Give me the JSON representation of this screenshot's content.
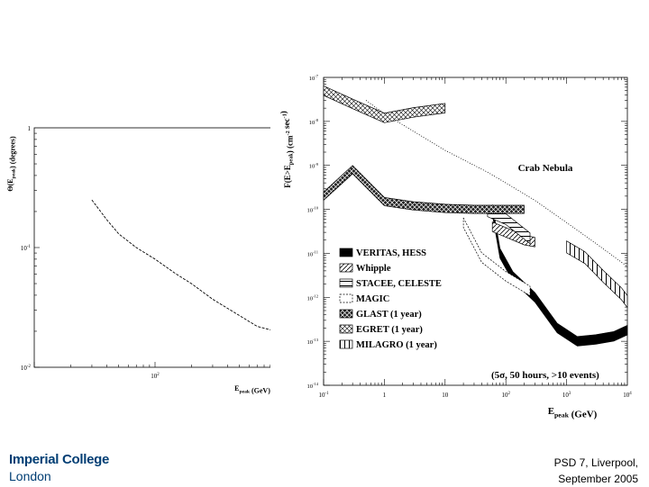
{
  "footer": {
    "line1": "PSD 7, Liverpool,",
    "line2": "September 2005"
  },
  "logo": {
    "line1": "Imperial College",
    "line2": "London",
    "color": "#003e74"
  },
  "chart_data": [
    {
      "id": "angular-resolution",
      "type": "line",
      "title": "",
      "ylabel": "Θ(E_peak) (degrees)",
      "xlabel": "E_peak (GeV)",
      "xscale": "log",
      "yscale": "log",
      "xlim": [
        10,
        1000
      ],
      "ylim": [
        0.01,
        1
      ],
      "xticks": [
        {
          "value": 100,
          "label": "10^2"
        },
        {
          "value": 1000,
          "label": "10^3"
        }
      ],
      "yticks": [
        {
          "value": 0.01,
          "label": "10^-2"
        },
        {
          "value": 0.1,
          "label": "10^-1"
        },
        {
          "value": 1,
          "label": "1"
        }
      ],
      "series": [
        {
          "style": "dashed",
          "x": [
            30,
            40,
            50,
            70,
            100,
            150,
            200,
            300,
            500,
            700,
            1000
          ],
          "y": [
            0.25,
            0.17,
            0.13,
            0.1,
            0.08,
            0.06,
            0.05,
            0.037,
            0.027,
            0.022,
            0.02
          ]
        }
      ]
    },
    {
      "id": "sensitivity",
      "type": "line",
      "title": "",
      "ylabel": "F(E>E_peak) (cm^-2 sec^-1)",
      "xlabel": "E_peak (GeV)",
      "xscale": "log",
      "yscale": "log",
      "xlim": [
        0.1,
        10000
      ],
      "ylim": [
        1e-14,
        1e-07
      ],
      "xticks": [
        {
          "value": 0.1,
          "label": "10^-1"
        },
        {
          "value": 1,
          "label": "1"
        },
        {
          "value": 10,
          "label": "10"
        },
        {
          "value": 100,
          "label": "10^2"
        },
        {
          "value": 1000,
          "label": "10^3"
        },
        {
          "value": 10000,
          "label": "10^4"
        }
      ],
      "yticks": [
        {
          "value": 1e-07,
          "label": "10^-7"
        },
        {
          "value": 1e-08,
          "label": "10^-8"
        },
        {
          "value": 1e-09,
          "label": "10^-9"
        },
        {
          "value": 1e-10,
          "label": "10^-10"
        },
        {
          "value": 1e-11,
          "label": "10^-11"
        },
        {
          "value": 1e-12,
          "label": "10^-12"
        },
        {
          "value": 1e-13,
          "label": "10^-13"
        },
        {
          "value": 1e-14,
          "label": "10^-14"
        }
      ],
      "annotations": [
        {
          "text": "Crab Nebula",
          "x": 300,
          "y": 1.2e-09
        },
        {
          "text": "(5σ, 50 hours, >10 events)",
          "x": 30,
          "y": 2e-14
        }
      ],
      "crab_line": {
        "style": "dotted",
        "x": [
          0.5,
          1,
          10,
          50,
          100,
          300,
          1000,
          3000,
          10000
        ],
        "y": [
          3e-08,
          1.5e-08,
          2.2e-09,
          7e-10,
          4e-10,
          1.6e-10,
          5e-11,
          1.7e-11,
          5e-12
        ]
      },
      "legend_position": "bottom-left",
      "legend": [
        {
          "name": "VERITAS, HESS",
          "pattern": "solid"
        },
        {
          "name": "Whipple",
          "pattern": "diag"
        },
        {
          "name": "STACEE, CELESTE",
          "pattern": "hlines"
        },
        {
          "name": "MAGIC",
          "pattern": "dashed"
        },
        {
          "name": "GLAST (1 year)",
          "pattern": "cross"
        },
        {
          "name": "EGRET (1 year)",
          "pattern": "diag2"
        },
        {
          "name": "MILAGRO (1 year)",
          "pattern": "vlines"
        }
      ],
      "series": [
        {
          "name": "VERITAS, HESS",
          "pattern": "solid",
          "width": 1.6,
          "x": [
            60,
            80,
            130,
            300,
            700,
            1500,
            3000,
            6000,
            10000
          ],
          "y": [
            1e-10,
            1e-11,
            3e-12,
            1e-12,
            2e-13,
            1e-13,
            1.1e-13,
            1.3e-13,
            1.8e-13
          ]
        },
        {
          "name": "Whipple",
          "pattern": "diag",
          "width": 1.6,
          "x": [
            60,
            100,
            200,
            300
          ],
          "y": [
            4e-11,
            3e-11,
            2e-11,
            1.8e-11
          ]
        },
        {
          "name": "STACEE, CELESTE",
          "pattern": "hlines",
          "width": 1.8,
          "x": [
            50,
            100,
            250
          ],
          "y": [
            9e-11,
            6e-11,
            2.2e-11
          ]
        },
        {
          "name": "MAGIC",
          "pattern": "dashed",
          "width": 1.6,
          "x": [
            20,
            40,
            100,
            250
          ],
          "y": [
            5e-11,
            8e-12,
            3e-12,
            1.4e-12
          ]
        },
        {
          "name": "GLAST (1 year)",
          "pattern": "cross",
          "width": 1.4,
          "x": [
            0.1,
            0.3,
            1,
            3,
            10,
            30,
            100,
            200
          ],
          "y": [
            2e-10,
            8e-10,
            1.5e-10,
            1.2e-10,
            1.05e-10,
            1e-10,
            1e-10,
            1e-10
          ]
        },
        {
          "name": "EGRET (1 year)",
          "pattern": "diag2",
          "width": 1.6,
          "x": [
            0.1,
            0.3,
            1,
            3,
            10
          ],
          "y": [
            5e-08,
            2.5e-08,
            1.2e-08,
            1.6e-08,
            2e-08
          ]
        },
        {
          "name": "MILAGRO (1 year)",
          "pattern": "vlines",
          "width": 2.0,
          "x": [
            1000,
            2000,
            4000,
            8000,
            10000
          ],
          "y": [
            1.4e-11,
            8e-12,
            3e-12,
            1.2e-12,
            8e-13
          ]
        }
      ]
    }
  ]
}
